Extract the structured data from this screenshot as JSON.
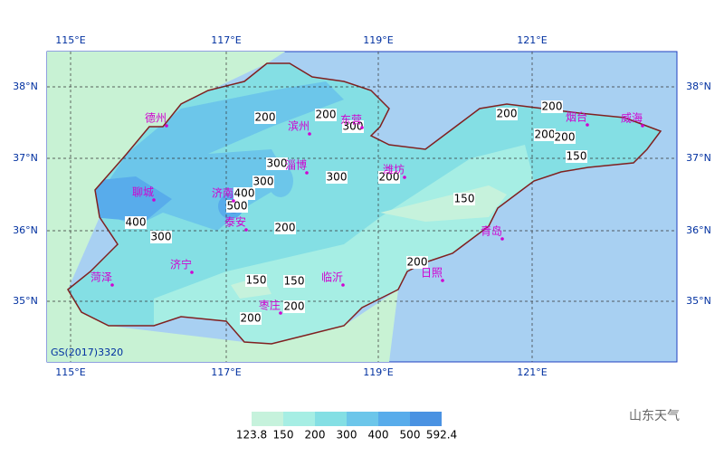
{
  "map": {
    "lon_labels": [
      "115°E",
      "117°E",
      "119°E",
      "121°E"
    ],
    "lat_labels": [
      "38°N",
      "37°N",
      "36°N",
      "35°N"
    ],
    "cities": [
      "德州",
      "滨州",
      "东营",
      "烟台",
      "威海",
      "淄博",
      "潍坊",
      "聊城",
      "济南",
      "泰安",
      "青岛",
      "济宁",
      "菏泽",
      "临沂",
      "日照",
      "枣庄"
    ],
    "contour_labels": [
      200,
      200,
      300,
      300,
      300,
      300,
      400,
      500,
      400,
      300,
      200,
      200,
      150,
      200,
      200,
      200,
      200,
      150,
      200,
      150,
      150,
      200,
      200
    ],
    "code": "GS(2017)3320",
    "legend": {
      "breaks": [
        123.8,
        150,
        200,
        300,
        400,
        500,
        592.4
      ],
      "colors": [
        "#c6f2dc",
        "#a6eee4",
        "#84dfe4",
        "#6cc6ea",
        "#58aceb",
        "#4a92e2"
      ]
    },
    "watermark": "山东天气"
  }
}
